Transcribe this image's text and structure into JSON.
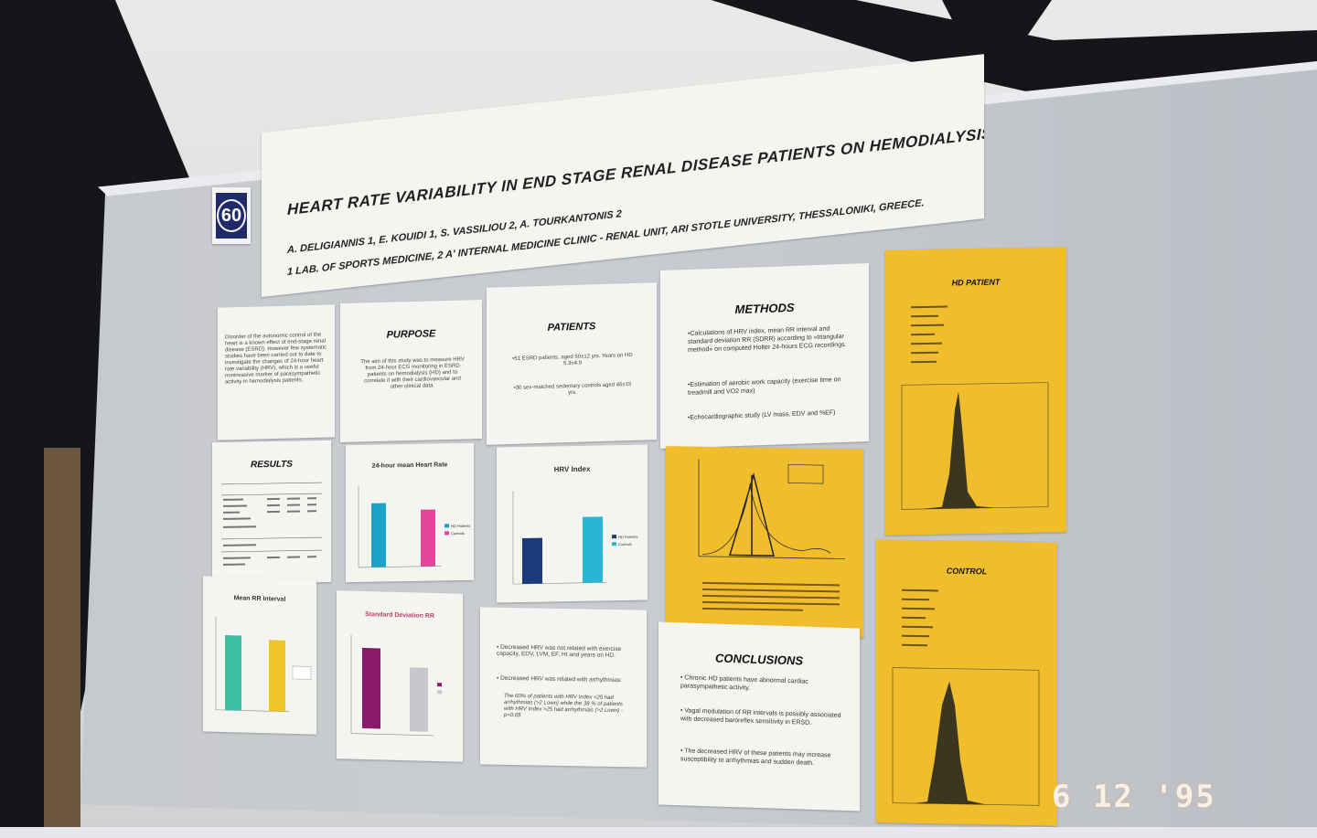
{
  "poster": {
    "number": "60",
    "title": "HEART RATE VARIABILITY IN END STAGE RENAL DISEASE PATIENTS ON HEMODIALYSIS",
    "authors": "A. DELIGIANNIS 1, E. KOUIDI 1, S. VASSILIOU 2, A. TOURKANTONIS 2",
    "affiliation": "1 LAB. OF SPORTS MEDICINE, 2 A' INTERNAL MEDICINE CLINIC - RENAL UNIT, ARI STOTLE UNIVERSITY, THESSALONIKI, GREECE."
  },
  "sections": {
    "intro_text": "Disorder of the autonomic control of the heart is a known effect of end-stage renal disease (ESRD). However few systematic studies have been carried out to date to investigate the changes of 24-hour heart rate variability (HRV), which is a useful noninvasive marker of parasympathetic activity in hemodialysis patients.",
    "purpose_title": "PURPOSE",
    "purpose_text": "The aim of this study was to measure HRV from 24-hour ECG monitoring in ESRD patients on hemodialysis (HD) and to correlate it with their cardiovascular and other clinical data.",
    "patients_title": "PATIENTS",
    "patients_1": "•51 ESRD patients, aged 50±12 yrs. Years on HD 5.3±4.9",
    "patients_2": "•30 sex-matched sedentary controls aged 46±15 yrs.",
    "methods_title": "METHODS",
    "methods_1": "•Calculations of HRV index, mean RR interval and standard deviation RR (SDRR) according to «triangular method» on computed Holter 24-hours ECG recordings.",
    "methods_2": "•Estimation of aerobic work capacity (exercise time on treadmill and VO2 max)",
    "methods_3": "•Echocardiographic study (LV mass, EDV and %EF)",
    "results_title": "RESULTS",
    "correlation_1": "• Decreased HRV was not related with exercise capacity, EDV, LVM, EF, Ht and years on HD.",
    "correlation_2": "• Decreased HRV was related with arrhythmias:",
    "correlation_3": "The 60% of patients with HRV Index <25 had arrhythmias (>2 Lown) while the 38 % of patients with HRV Index >25 had arrhythmias (>2 Lown) - p<0.05",
    "conclusions_title": "CONCLUSIONS",
    "conclusion_1": "• Chronic HD patients have abnormal cardiac parasympathetic activity.",
    "conclusion_2": "• Vagal modulation of RR intervals is possibly associated with decreased baroreflex sensitivity in ERSD.",
    "conclusion_3": "• The decreased HRV of these patients may increase susceptibility to arrhythmias and sudden death.",
    "hd_patient_title": "HD PATIENT",
    "control_title": "CONTROL"
  },
  "charts": {
    "heart_rate": {
      "title": "24-hour mean Heart Rate",
      "legend": [
        "HD Patients",
        "Controls"
      ]
    },
    "hrv_index": {
      "title": "HRV Index",
      "legend": [
        "HD Patients",
        "Controls"
      ]
    },
    "mean_rr": {
      "title": "Mean RR Interval"
    },
    "sdrr": {
      "title": "Standard Deviation RR"
    }
  },
  "photo": {
    "date_stamp": "6 12 '95"
  },
  "colors": {
    "poster_blue": "#1f2a6b",
    "bar_hd": "#1aa3c7",
    "bar_control": "#e5449a",
    "hrv_hd": "#1b3a7a",
    "hrv_control": "#28b6d6",
    "rr_hd": "#3dbfa6",
    "rr_control": "#f0c52b",
    "sdrr_hd": "#8a1b6b",
    "sdrr_control": "#c8c8cc",
    "yellow_sheet": "#f0bd2c"
  }
}
